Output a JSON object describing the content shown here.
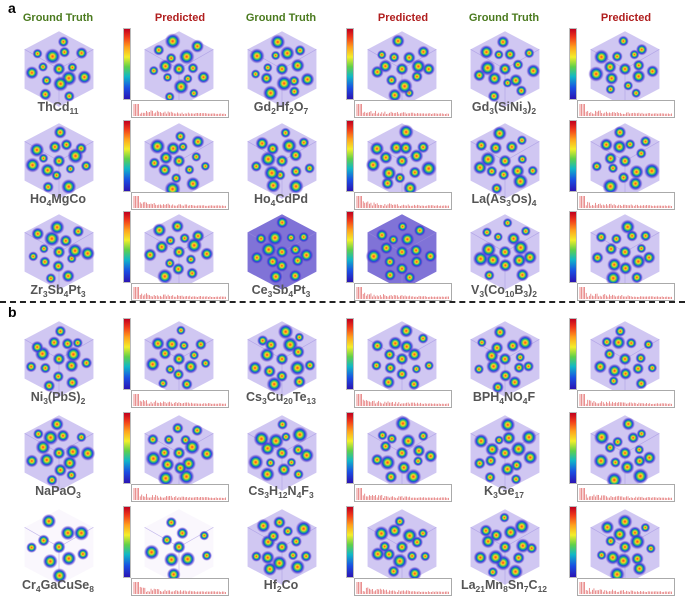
{
  "panels": [
    {
      "letter": "a",
      "headers": [
        "Ground Truth",
        "Predicted"
      ],
      "rows": [
        [
          "ThCd",
          "11"
        ],
        [
          "Gd",
          "2",
          "Hf",
          "2",
          "O",
          "7"
        ],
        [
          "Gd",
          "3",
          "(SiNi",
          "3",
          ")",
          "2"
        ]
      ]
    },
    {
      "letter": "b",
      "headers": [
        "Ground Truth",
        "Predicted"
      ]
    }
  ],
  "formulas": {
    "a": [
      [
        [
          "ThCd",
          "11"
        ],
        [
          "Gd",
          "2",
          "Hf",
          "2",
          "O",
          "7"
        ],
        [
          "Gd",
          "3",
          "(SiNi",
          "3",
          ")",
          "2"
        ]
      ],
      [
        [
          "Ho",
          "4",
          "MgCo"
        ],
        [
          "Ho",
          "4",
          "CdPd"
        ],
        [
          "La(As",
          "3",
          "Os)",
          "4"
        ]
      ],
      [
        [
          "Zr",
          "3",
          "Sb",
          "4",
          "Pt",
          "3"
        ],
        [
          "Ce",
          "3",
          "Sb",
          "4",
          "Pt",
          "3"
        ],
        [
          "V",
          "3",
          "(Co",
          "10",
          "B",
          "3",
          ")",
          "2"
        ]
      ]
    ],
    "b": [
      [
        [
          "Ni",
          "3",
          "(PbS)",
          "2"
        ],
        [
          "Cs",
          "3",
          "Cu",
          "20",
          "Te",
          "13"
        ],
        [
          "BPH",
          "4",
          "NO",
          "4",
          "F"
        ]
      ],
      [
        [
          "NaPaO",
          "3"
        ],
        [
          "Cs",
          "3",
          "H",
          "12",
          "N",
          "4",
          "F",
          "3"
        ],
        [
          "K",
          "3",
          "Ge",
          "17"
        ]
      ],
      [
        [
          "Cr",
          "4",
          "GaCuSe",
          "8"
        ],
        [
          "Hf",
          "2",
          "Co"
        ],
        [
          "La",
          "21",
          "Mn",
          "8",
          "Sn",
          "7",
          "C",
          "12"
        ]
      ]
    ]
  },
  "colors": {
    "ground_truth": "#4a7a1e",
    "predicted": "#b01e1e",
    "spectrum": "#e06060"
  }
}
